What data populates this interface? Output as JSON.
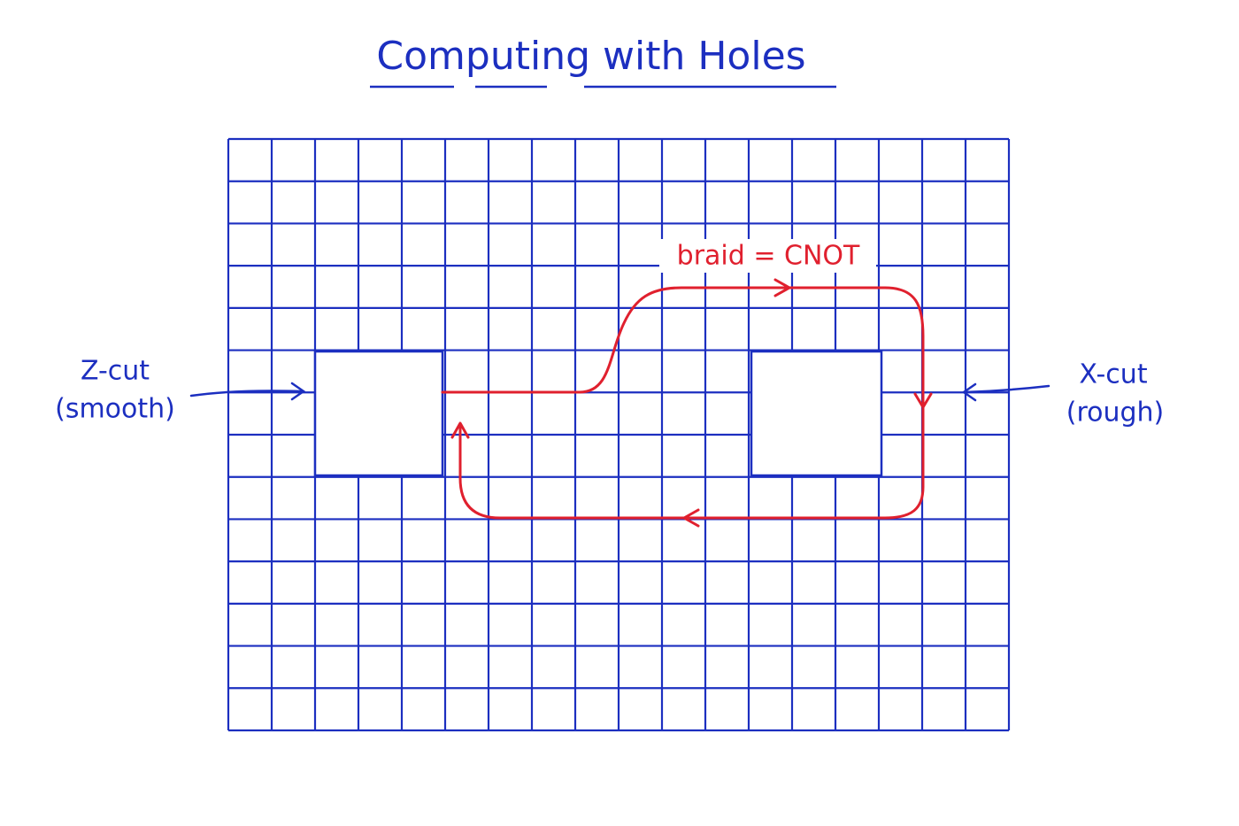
{
  "title": "Computing with Holes",
  "left_label": {
    "line1": "Z-cut",
    "line2": "(smooth)"
  },
  "right_label": {
    "line1": "X-cut",
    "line2": "(rough)"
  },
  "path_label": "braid = CNOT"
}
